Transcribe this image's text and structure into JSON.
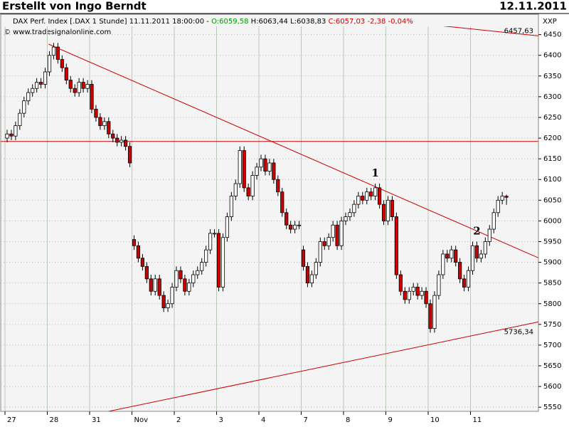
{
  "chart_data": {
    "type": "candlestick",
    "title": "Erstellt von Ingo Berndt",
    "date": "12.11.2011",
    "info": {
      "instrument": "DAX Perf. Index [.DAX  1 Stunde]  11.11.2011 18:00:00 -",
      "open": "O:6059,58",
      "highlow": "H:6063,44 L:6038,83",
      "close": "C:6057,03 -2,38 -0,04%"
    },
    "source": "© www.tradesignalonline.com",
    "axis_label": "XXP",
    "categories": [
      "27",
      null,
      null,
      null,
      null,
      null,
      null,
      null,
      null,
      null,
      "28",
      null,
      null,
      null,
      null,
      null,
      null,
      null,
      null,
      null,
      "31",
      null,
      null,
      null,
      null,
      null,
      null,
      null,
      null,
      null,
      "Nov",
      null,
      null,
      null,
      null,
      null,
      null,
      null,
      null,
      null,
      "2",
      null,
      null,
      null,
      null,
      null,
      null,
      null,
      null,
      null,
      "3",
      null,
      null,
      null,
      null,
      null,
      null,
      null,
      null,
      null,
      "4",
      null,
      null,
      null,
      null,
      null,
      null,
      null,
      null,
      null,
      "7",
      null,
      null,
      null,
      null,
      null,
      null,
      null,
      null,
      null,
      "8",
      null,
      null,
      null,
      null,
      null,
      null,
      null,
      null,
      null,
      "9",
      null,
      null,
      null,
      null,
      null,
      null,
      null,
      null,
      null,
      "10",
      null,
      null,
      null,
      null,
      null,
      null,
      null,
      null,
      null,
      "11",
      null,
      null,
      null,
      null,
      null,
      null,
      null,
      null
    ],
    "open": [
      6200,
      6210,
      6205,
      6230,
      6260,
      6290,
      6310,
      6320,
      6335,
      6330,
      6360,
      6400,
      6420,
      6390,
      6370,
      6340,
      6320,
      6310,
      6335,
      6320,
      6330,
      6270,
      6250,
      6230,
      6240,
      6210,
      6200,
      6190,
      6195,
      6180,
      5955,
      5940,
      5910,
      5890,
      5860,
      5830,
      5860,
      5820,
      5790,
      5800,
      5840,
      5880,
      5860,
      5830,
      5850,
      5870,
      5880,
      5900,
      5930,
      5970,
      5970,
      5840,
      5960,
      6010,
      6060,
      6090,
      6170,
      6080,
      6060,
      6110,
      6130,
      6150,
      6120,
      6140,
      6100,
      6070,
      6020,
      5990,
      5980,
      5990,
      5930,
      5890,
      5850,
      5870,
      5900,
      5950,
      5940,
      5960,
      5990,
      5940,
      6000,
      6010,
      6020,
      6040,
      6060,
      6050,
      6070,
      6060,
      6080,
      6040,
      6000,
      6050,
      6010,
      5870,
      5830,
      5810,
      5830,
      5840,
      5820,
      5830,
      5800,
      5740,
      5820,
      5870,
      5920,
      5910,
      5930,
      5900,
      5860,
      5840,
      5880,
      5940,
      5910,
      5920,
      5950,
      5980,
      6020,
      6050,
      6059.58
    ],
    "high": [
      6220,
      6220,
      6240,
      6270,
      6300,
      6320,
      6330,
      6345,
      6345,
      6370,
      6410,
      6430,
      6430,
      6400,
      6380,
      6350,
      6330,
      6345,
      6345,
      6340,
      6340,
      6280,
      6260,
      6250,
      6250,
      6220,
      6210,
      6205,
      6205,
      6190,
      5965,
      5950,
      5920,
      5900,
      5870,
      5870,
      5870,
      5830,
      5810,
      5850,
      5890,
      5890,
      5870,
      5860,
      5880,
      5890,
      5910,
      5940,
      5980,
      5980,
      5980,
      5970,
      6020,
      6070,
      6100,
      6180,
      6180,
      6090,
      6120,
      6140,
      6160,
      6160,
      6150,
      6150,
      6110,
      6080,
      6030,
      6000,
      6000,
      6000,
      5940,
      5900,
      5880,
      5910,
      5960,
      5960,
      5970,
      6000,
      6000,
      6010,
      6020,
      6030,
      6050,
      6070,
      6070,
      6080,
      6080,
      6090,
      6090,
      6050,
      6060,
      6060,
      6020,
      5880,
      5840,
      5840,
      5850,
      5850,
      5840,
      5840,
      5810,
      5830,
      5880,
      5930,
      5930,
      5940,
      5940,
      5910,
      5870,
      5890,
      5950,
      5950,
      5930,
      5960,
      5990,
      6030,
      6060,
      6070,
      6063.44
    ],
    "low": [
      6190,
      6195,
      6195,
      6220,
      6250,
      6280,
      6300,
      6310,
      6320,
      6320,
      6350,
      6390,
      6380,
      6360,
      6330,
      6310,
      6300,
      6300,
      6310,
      6310,
      6260,
      6240,
      6220,
      6220,
      6200,
      6190,
      6180,
      6180,
      6170,
      6130,
      5930,
      5900,
      5880,
      5850,
      5820,
      5820,
      5810,
      5780,
      5780,
      5790,
      5830,
      5850,
      5820,
      5820,
      5840,
      5860,
      5870,
      5890,
      5920,
      5960,
      5830,
      5830,
      5950,
      6000,
      6050,
      6080,
      6070,
      6050,
      6050,
      6100,
      6120,
      6110,
      6110,
      6090,
      6060,
      6010,
      5980,
      5970,
      5970,
      5980,
      5880,
      5840,
      5840,
      5860,
      5890,
      5930,
      5930,
      5950,
      5930,
      5930,
      5990,
      6000,
      6010,
      6030,
      6040,
      6040,
      6050,
      6050,
      6030,
      5990,
      5990,
      6000,
      5860,
      5820,
      5800,
      5800,
      5820,
      5810,
      5810,
      5790,
      5730,
      5730,
      5810,
      5860,
      5900,
      5900,
      5890,
      5850,
      5830,
      5830,
      5870,
      5900,
      5900,
      5910,
      5940,
      5970,
      6010,
      6040,
      6038.83
    ],
    "close": [
      6210,
      6205,
      6230,
      6260,
      6290,
      6310,
      6320,
      6335,
      6330,
      6360,
      6400,
      6420,
      6390,
      6370,
      6340,
      6320,
      6310,
      6335,
      6320,
      6330,
      6270,
      6250,
      6230,
      6240,
      6210,
      6200,
      6190,
      6195,
      6180,
      6140,
      5940,
      5910,
      5890,
      5860,
      5830,
      5860,
      5820,
      5790,
      5800,
      5840,
      5880,
      5860,
      5830,
      5850,
      5870,
      5880,
      5900,
      5930,
      5970,
      5970,
      5840,
      5960,
      6010,
      6060,
      6090,
      6170,
      6080,
      6060,
      6110,
      6130,
      6150,
      6120,
      6140,
      6100,
      6070,
      6020,
      5990,
      5980,
      5990,
      5990,
      5890,
      5850,
      5870,
      5900,
      5950,
      5940,
      5960,
      5990,
      5940,
      6000,
      6010,
      6020,
      6040,
      6060,
      6050,
      6070,
      6060,
      6080,
      6040,
      6000,
      6050,
      6010,
      5870,
      5830,
      5810,
      5830,
      5840,
      5820,
      5830,
      5800,
      5740,
      5820,
      5870,
      5920,
      5910,
      5930,
      5900,
      5860,
      5840,
      5880,
      5940,
      5910,
      5920,
      5950,
      5980,
      6020,
      6050,
      6060,
      6057.03
    ],
    "up_color": "#ffffff",
    "down_color": "#cc0000",
    "line_color": "#cc0000",
    "trendlines": [
      {
        "x": [
          9.8,
          125.5
        ],
        "values": [
          6427,
          5911
        ]
      },
      {
        "x": [
          92.4,
          125.5
        ],
        "values": [
          6482,
          6447
        ],
        "label": "6457,63"
      },
      {
        "x": [
          24,
          125.5
        ],
        "values": [
          5540,
          5756
        ],
        "label": "5736,34"
      },
      {
        "x": [
          -2,
          125.5
        ],
        "values": [
          6192,
          6192
        ]
      }
    ],
    "annotations": [
      {
        "text": "1",
        "x": 87
      },
      {
        "text": "2",
        "x": 111
      }
    ],
    "ylim": [
      5540,
      6470
    ],
    "yticks": [
      5550,
      5600,
      5650,
      5700,
      5750,
      5800,
      5850,
      5900,
      5950,
      6000,
      6050,
      6100,
      6150,
      6200,
      6250,
      6300,
      6350,
      6400,
      6450
    ],
    "grid": true
  }
}
